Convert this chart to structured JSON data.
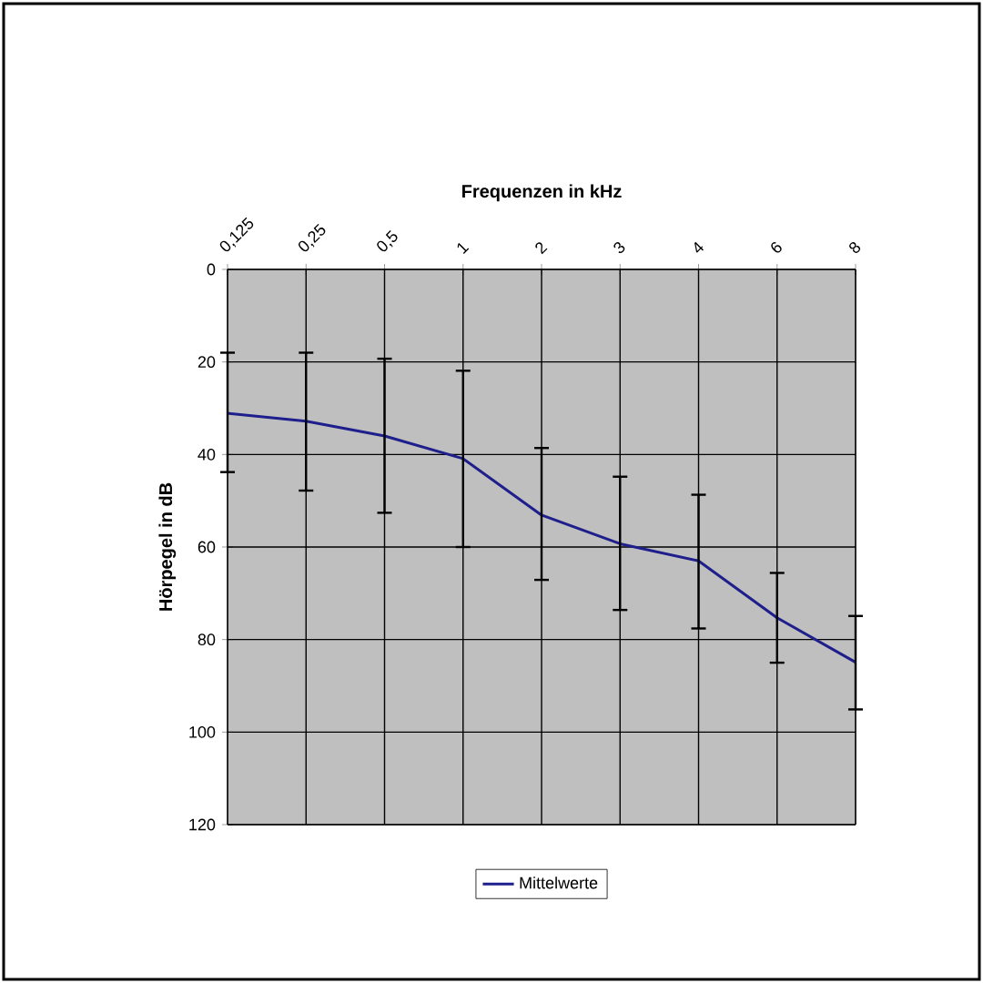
{
  "chart_data": {
    "type": "line",
    "xlabel": "Frequenzen in kHz",
    "ylabel": "Hörpegel in dB",
    "categories": [
      "0,125",
      "0,25",
      "0,5",
      "1",
      "2",
      "3",
      "4",
      "6",
      "8"
    ],
    "series": [
      {
        "name": "Mittelwerte",
        "color": "#1e1e8c",
        "values": [
          31.1,
          32.8,
          36.0,
          40.9,
          53.1,
          59.3,
          63.0,
          75.3,
          84.9
        ],
        "errors": [
          [
            18.0,
            43.8
          ],
          [
            18.0,
            47.8
          ],
          [
            19.3,
            52.6
          ],
          [
            21.9,
            60.0
          ],
          [
            38.6,
            67.1
          ],
          [
            44.8,
            73.6
          ],
          [
            48.7,
            77.6
          ],
          [
            65.6,
            85.0
          ],
          [
            74.9,
            95.1
          ]
        ]
      }
    ],
    "ylim": [
      120,
      0
    ],
    "yticks": [
      0,
      20,
      40,
      60,
      80,
      100,
      120
    ],
    "grid": true,
    "legend": "bottom",
    "marker": "none",
    "line_style": "solid"
  }
}
